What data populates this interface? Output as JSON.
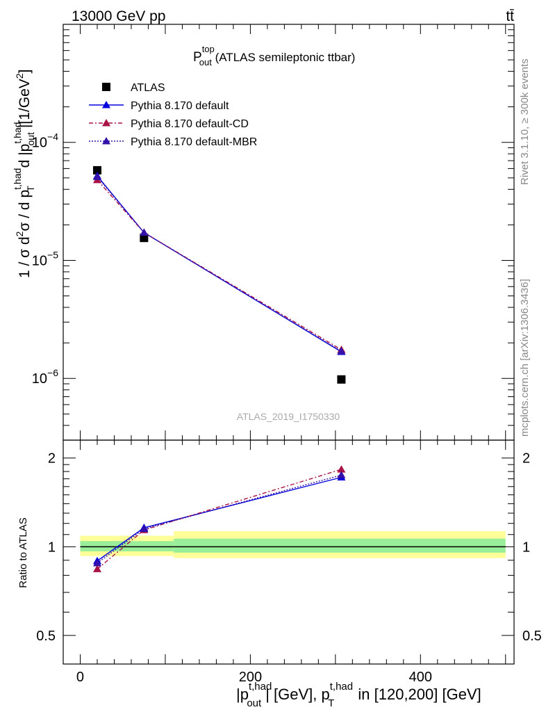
{
  "header": {
    "left": "13000 GeV pp",
    "right": "tt̄"
  },
  "main_title": {
    "p": "P",
    "sup": "top",
    "sub": "out",
    "rest": " (ATLAS semileptonic ttbar)"
  },
  "ylabel_top": {
    "p1": "1 / σ d",
    "sup2": "2",
    "p2": "σ / d p",
    "supT": "t,had",
    "subT": "T",
    "p3": " d |p",
    "supO": "t,had",
    "subO": "out",
    "p4": "|[1/GeV",
    "sup4": "2",
    "p5": "]"
  },
  "ylabel_bottom": "Ratio to ATLAS",
  "xlabel": {
    "p1": "|p",
    "sup1": "t,had",
    "sub1": "out",
    "p2": "| [GeV], p",
    "sup2": "t,had",
    "sub2": "T",
    "p3": " in [120,200] [GeV]"
  },
  "right_texts": {
    "rivet": "Rivet 3.1.10, ≥ 300k events",
    "mcplots": "mcplots.cern.ch [arXiv:1306.3436]"
  },
  "watermark": "ATLAS_2019_I1750330",
  "legend": [
    {
      "label": "ATLAS",
      "marker": "square",
      "color": "#000000",
      "line": "none"
    },
    {
      "label": "Pythia 8.170 default",
      "marker": "triangle",
      "color": "#0000dd",
      "line": "solid"
    },
    {
      "label": "Pythia 8.170 default-CD",
      "marker": "triangle",
      "color": "#aa1144",
      "line": "dashdot"
    },
    {
      "label": "Pythia 8.170 default-MBR",
      "marker": "triangle",
      "color": "#3311aa",
      "line": "dotted"
    }
  ],
  "chart_data": [
    {
      "type": "line",
      "panel": "main",
      "yscale": "log",
      "xlim": [
        -20,
        510
      ],
      "ylim": [
        3e-07,
        0.001
      ],
      "yticks": [
        {
          "value": 1e-06,
          "base": "10",
          "exp": "−6"
        },
        {
          "value": 1e-05,
          "base": "10",
          "exp": "−5"
        },
        {
          "value": 0.0001,
          "base": "10",
          "exp": "−4"
        }
      ],
      "x": [
        20,
        75,
        307
      ],
      "series": [
        {
          "name": "ATLAS",
          "values": [
            5.8e-05,
            1.55e-05,
            9.8e-07
          ]
        },
        {
          "name": "Pythia 8.170 default",
          "values": [
            5.2e-05,
            1.72e-05,
            1.68e-06
          ]
        },
        {
          "name": "Pythia 8.170 default-CD",
          "values": [
            4.8e-05,
            1.72e-05,
            1.75e-06
          ]
        },
        {
          "name": "Pythia 8.170 default-MBR",
          "values": [
            5.1e-05,
            1.72e-05,
            1.7e-06
          ]
        }
      ]
    },
    {
      "type": "line",
      "panel": "ratio",
      "yscale": "log",
      "xlim": [
        -20,
        510
      ],
      "ylim": [
        0.4,
        2.3
      ],
      "xticks": [
        "0",
        "200",
        "400"
      ],
      "xtick_values": [
        0,
        200,
        400
      ],
      "yticks": [
        {
          "value": 0.5,
          "label": "0.5"
        },
        {
          "value": 1,
          "label": "1"
        },
        {
          "value": 2,
          "label": "2"
        }
      ],
      "x": [
        20,
        75,
        307
      ],
      "bands": [
        {
          "x0": 0,
          "x1": 110,
          "green": [
            0.965,
            1.045
          ],
          "yellow": [
            0.93,
            1.09
          ]
        },
        {
          "x0": 110,
          "x1": 500,
          "green": [
            0.955,
            1.065
          ],
          "yellow": [
            0.915,
            1.13
          ]
        }
      ],
      "series": [
        {
          "name": "Pythia 8.170 default",
          "values": [
            0.895,
            1.16,
            1.72
          ]
        },
        {
          "name": "Pythia 8.170 default-CD",
          "values": [
            0.84,
            1.14,
            1.83
          ]
        },
        {
          "name": "Pythia 8.170 default-MBR",
          "values": [
            0.88,
            1.15,
            1.75
          ]
        }
      ]
    }
  ]
}
